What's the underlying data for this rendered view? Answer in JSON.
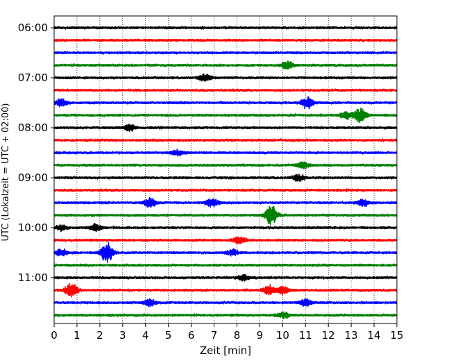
{
  "chart_data": {
    "type": "line",
    "title": "",
    "xlabel": "Zeit  [min]",
    "ylabel": "UTC (Lokalzeit = UTC + 02:00)",
    "xlim": [
      0,
      15
    ],
    "x_ticks": [
      0,
      1,
      2,
      3,
      4,
      5,
      6,
      7,
      8,
      9,
      10,
      11,
      12,
      13,
      14,
      15
    ],
    "x_tick_labels": [
      "0",
      "1",
      "2",
      "3",
      "4",
      "5",
      "6",
      "7",
      "8",
      "9",
      "10",
      "11",
      "12",
      "13",
      "14",
      "15"
    ],
    "y_tick_labels": [
      "06:00",
      "07:00",
      "08:00",
      "09:00",
      "10:00",
      "11:00"
    ],
    "grid": "vertical dotted",
    "legend": "none",
    "colors": [
      "#000000",
      "#ff0000",
      "#0000ff",
      "#008000"
    ],
    "traces": [
      {
        "start": "06:00",
        "color": "#000000",
        "events": []
      },
      {
        "start": "06:15",
        "color": "#ff0000",
        "events": []
      },
      {
        "start": "06:30",
        "color": "#0000ff",
        "events": []
      },
      {
        "start": "06:45",
        "color": "#008000",
        "events": [
          {
            "t": 10.2,
            "amp": 0.35
          }
        ]
      },
      {
        "start": "07:00",
        "color": "#000000",
        "events": [
          {
            "t": 6.6,
            "amp": 0.3
          }
        ]
      },
      {
        "start": "07:15",
        "color": "#ff0000",
        "events": []
      },
      {
        "start": "07:30",
        "color": "#0000ff",
        "events": [
          {
            "t": 0.3,
            "amp": 0.35
          },
          {
            "t": 11.1,
            "amp": 0.55
          }
        ]
      },
      {
        "start": "07:45",
        "color": "#008000",
        "events": [
          {
            "t": 13.4,
            "amp": 0.65
          },
          {
            "t": 12.8,
            "amp": 0.3
          }
        ]
      },
      {
        "start": "08:00",
        "color": "#000000",
        "events": [
          {
            "t": 3.3,
            "amp": 0.3
          }
        ]
      },
      {
        "start": "08:15",
        "color": "#ff0000",
        "events": []
      },
      {
        "start": "08:30",
        "color": "#0000ff",
        "events": [
          {
            "t": 5.4,
            "amp": 0.25
          }
        ]
      },
      {
        "start": "08:45",
        "color": "#008000",
        "events": [
          {
            "t": 10.9,
            "amp": 0.3
          }
        ]
      },
      {
        "start": "09:00",
        "color": "#000000",
        "events": [
          {
            "t": 10.7,
            "amp": 0.3
          }
        ]
      },
      {
        "start": "09:15",
        "color": "#ff0000",
        "events": []
      },
      {
        "start": "09:30",
        "color": "#0000ff",
        "events": [
          {
            "t": 4.2,
            "amp": 0.4
          },
          {
            "t": 6.9,
            "amp": 0.4
          },
          {
            "t": 13.5,
            "amp": 0.3
          }
        ]
      },
      {
        "start": "09:45",
        "color": "#008000",
        "events": [
          {
            "t": 9.5,
            "amp": 0.9
          }
        ]
      },
      {
        "start": "10:00",
        "color": "#000000",
        "events": [
          {
            "t": 0.3,
            "amp": 0.25
          },
          {
            "t": 1.8,
            "amp": 0.3
          }
        ]
      },
      {
        "start": "10:15",
        "color": "#ff0000",
        "events": [
          {
            "t": 8.1,
            "amp": 0.35
          }
        ]
      },
      {
        "start": "10:30",
        "color": "#0000ff",
        "events": [
          {
            "t": 2.3,
            "amp": 1.0
          },
          {
            "t": 0.3,
            "amp": 0.3
          },
          {
            "t": 7.8,
            "amp": 0.25
          }
        ]
      },
      {
        "start": "10:45",
        "color": "#008000",
        "events": []
      },
      {
        "start": "11:00",
        "color": "#000000",
        "events": [
          {
            "t": 8.3,
            "amp": 0.25
          }
        ]
      },
      {
        "start": "11:15",
        "color": "#ff0000",
        "events": [
          {
            "t": 0.75,
            "amp": 0.65
          },
          {
            "t": 9.4,
            "amp": 0.4
          },
          {
            "t": 10.0,
            "amp": 0.3
          }
        ]
      },
      {
        "start": "11:30",
        "color": "#0000ff",
        "events": [
          {
            "t": 4.2,
            "amp": 0.35
          },
          {
            "t": 11.0,
            "amp": 0.3
          }
        ]
      },
      {
        "start": "11:45",
        "color": "#008000",
        "events": [
          {
            "t": 10.0,
            "amp": 0.3
          }
        ]
      }
    ]
  }
}
